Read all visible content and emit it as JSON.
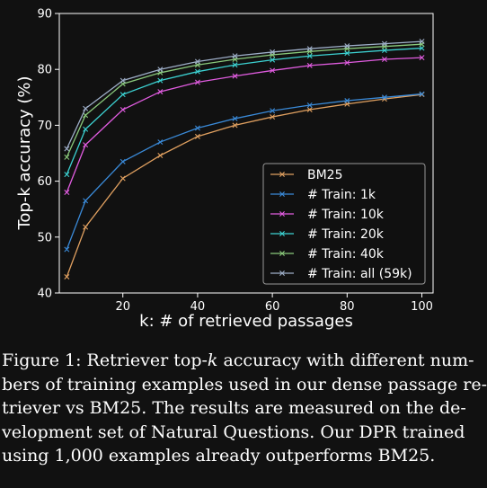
{
  "chart_data": {
    "type": "line",
    "title": "",
    "xlabel": "k: # of retrieved passages",
    "ylabel": "Top-k accuracy (%)",
    "xlim": [
      3,
      103
    ],
    "ylim": [
      40,
      90
    ],
    "xticks": [
      20,
      40,
      60,
      80,
      100
    ],
    "yticks": [
      40,
      50,
      60,
      70,
      80,
      90
    ],
    "x": [
      5,
      10,
      20,
      30,
      40,
      50,
      60,
      70,
      80,
      90,
      100
    ],
    "legend_position": "center-right",
    "series": [
      {
        "name": "BM25",
        "color": "#e0a060",
        "values": [
          42.9,
          51.8,
          60.5,
          64.6,
          68.0,
          70.0,
          71.5,
          72.8,
          73.8,
          74.7,
          75.5
        ]
      },
      {
        "name": "# Train: 1k",
        "color": "#3a8ad8",
        "values": [
          47.8,
          56.5,
          63.5,
          67.0,
          69.5,
          71.2,
          72.6,
          73.6,
          74.4,
          75.0,
          75.6
        ]
      },
      {
        "name": "# Train: 10k",
        "color": "#e15ce0",
        "values": [
          58.0,
          66.5,
          72.8,
          76.0,
          77.7,
          78.8,
          79.8,
          80.7,
          81.2,
          81.8,
          82.1
        ]
      },
      {
        "name": "# Train: 20k",
        "color": "#3cd2d2",
        "values": [
          61.2,
          69.3,
          75.5,
          78.0,
          79.6,
          80.8,
          81.7,
          82.4,
          82.9,
          83.4,
          83.8
        ]
      },
      {
        "name": "# Train: 40k",
        "color": "#8ac97b",
        "values": [
          64.3,
          71.8,
          77.4,
          79.4,
          80.8,
          81.8,
          82.6,
          83.2,
          83.7,
          84.1,
          84.5
        ]
      },
      {
        "name": "# Train: all (59k)",
        "color": "#9eaec8",
        "values": [
          65.8,
          73.0,
          78.0,
          80.0,
          81.4,
          82.4,
          83.1,
          83.7,
          84.2,
          84.6,
          85.0
        ]
      }
    ]
  },
  "caption": {
    "lines": [
      [
        "Figure 1: Retriever top-",
        "k",
        " accuracy with different num-"
      ],
      [
        "bers of training examples used in our dense passage re-"
      ],
      [
        "triever vs BM25.  The results are measured on the de-"
      ],
      [
        "velopment set of Natural Questions.  Our DPR trained"
      ],
      [
        "using 1,000 examples already outperforms BM25."
      ]
    ]
  }
}
